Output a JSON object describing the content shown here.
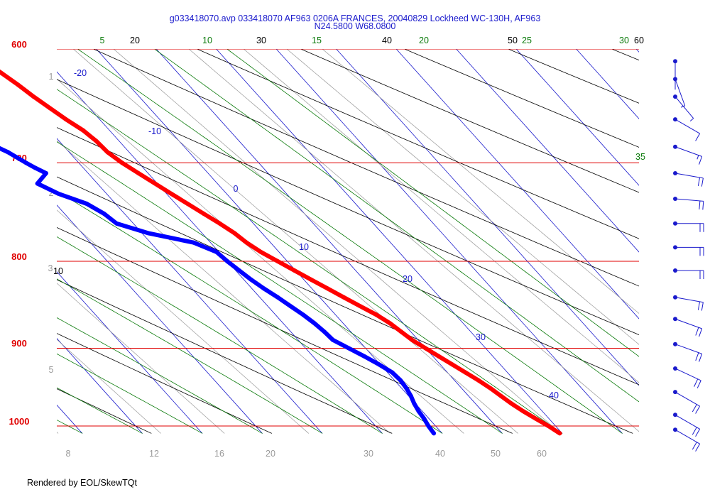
{
  "window": {
    "title_line1": "g033418070.avp 033418070 AF963 0206A FRANCES, 20040829 Lockheed WC-130H, AF963",
    "title_line2": "N24.5800 W68.0800",
    "footer": "Rendered by EOL/SkewTQt"
  },
  "colors": {
    "isobar": "#e00000",
    "isotherm": "#1a1acc",
    "dry_adiabat": "#000000",
    "moist_adiabat": "#0a7a0a",
    "mixing_ratio": "#9a9a9a",
    "temperature": "#ff0000",
    "dewpoint": "#0000ff",
    "wind": "#1a1acc"
  },
  "chart_data": {
    "type": "line",
    "title": "g033418070.avp 033418070 AF963 0206A FRANCES, 20040829 Lockheed WC-130H, AF963",
    "subtitle": "N24.5800 W68.0800",
    "pressure_range": [
      1010,
      600
    ],
    "y_scale": "log",
    "pressure_ticks": [
      "600",
      "700",
      "800",
      "900",
      "1000"
    ],
    "isotherm_labels": [
      "-20",
      "-10",
      "0",
      "10",
      "20",
      "30",
      "40"
    ],
    "dry_adiabat_labels": [
      "10",
      "20",
      "30",
      "40",
      "50",
      "60"
    ],
    "moist_adiabat_labels": [
      "5",
      "10",
      "15",
      "20",
      "25",
      "30",
      "35"
    ],
    "mixing_ratio_labels": [
      "8",
      "12",
      "16",
      "20",
      "30",
      "40",
      "50",
      "60"
    ],
    "height_labels": [
      "1",
      "2",
      "3",
      "5"
    ],
    "series": [
      {
        "name": "Temperature",
        "points": [
          {
            "p": 1010,
            "t": 24.8
          },
          {
            "p": 1000,
            "t": 24.4
          },
          {
            "p": 990,
            "t": 23.9
          },
          {
            "p": 980,
            "t": 23.4
          },
          {
            "p": 970,
            "t": 23.0
          },
          {
            "p": 960,
            "t": 22.7
          },
          {
            "p": 950,
            "t": 22.4
          },
          {
            "p": 940,
            "t": 22.0
          },
          {
            "p": 930,
            "t": 21.5
          },
          {
            "p": 920,
            "t": 21.0
          },
          {
            "p": 910,
            "t": 20.5
          },
          {
            "p": 900,
            "t": 20.0
          },
          {
            "p": 890,
            "t": 19.5
          },
          {
            "p": 880,
            "t": 19.2
          },
          {
            "p": 870,
            "t": 18.9
          },
          {
            "p": 860,
            "t": 18.4
          },
          {
            "p": 850,
            "t": 17.7
          },
          {
            "p": 840,
            "t": 17.0
          },
          {
            "p": 830,
            "t": 16.3
          },
          {
            "p": 820,
            "t": 15.6
          },
          {
            "p": 810,
            "t": 14.9
          },
          {
            "p": 800,
            "t": 14.2
          },
          {
            "p": 790,
            "t": 13.5
          },
          {
            "p": 780,
            "t": 13.0
          },
          {
            "p": 770,
            "t": 12.7
          },
          {
            "p": 760,
            "t": 12.2
          },
          {
            "p": 750,
            "t": 11.6
          },
          {
            "p": 740,
            "t": 11.0
          },
          {
            "p": 730,
            "t": 10.4
          },
          {
            "p": 720,
            "t": 9.8
          },
          {
            "p": 710,
            "t": 9.2
          },
          {
            "p": 700,
            "t": 8.6
          },
          {
            "p": 690,
            "t": 8.2
          },
          {
            "p": 680,
            "t": 8.1
          },
          {
            "p": 670,
            "t": 7.8
          },
          {
            "p": 660,
            "t": 7.2
          },
          {
            "p": 650,
            "t": 6.7
          },
          {
            "p": 640,
            "t": 6.2
          },
          {
            "p": 630,
            "t": 5.8
          },
          {
            "p": 620,
            "t": 5.3
          },
          {
            "p": 610,
            "t": 4.8
          },
          {
            "p": 600,
            "t": 4.3
          }
        ]
      },
      {
        "name": "Dewpoint",
        "points": [
          {
            "p": 1010,
            "t": 14.3
          },
          {
            "p": 1000,
            "t": 14.4
          },
          {
            "p": 990,
            "t": 14.6
          },
          {
            "p": 980,
            "t": 14.7
          },
          {
            "p": 970,
            "t": 14.9
          },
          {
            "p": 960,
            "t": 15.2
          },
          {
            "p": 950,
            "t": 15.4
          },
          {
            "p": 940,
            "t": 15.5
          },
          {
            "p": 930,
            "t": 15.4
          },
          {
            "p": 920,
            "t": 14.9
          },
          {
            "p": 910,
            "t": 14.3
          },
          {
            "p": 900,
            "t": 13.6
          },
          {
            "p": 890,
            "t": 12.9
          },
          {
            "p": 880,
            "t": 12.8
          },
          {
            "p": 870,
            "t": 12.6
          },
          {
            "p": 860,
            "t": 12.3
          },
          {
            "p": 850,
            "t": 11.9
          },
          {
            "p": 840,
            "t": 11.5
          },
          {
            "p": 830,
            "t": 11.0
          },
          {
            "p": 820,
            "t": 10.6
          },
          {
            "p": 810,
            "t": 10.3
          },
          {
            "p": 800,
            "t": 10.0
          },
          {
            "p": 790,
            "t": 9.8
          },
          {
            "p": 780,
            "t": 8.6
          },
          {
            "p": 770,
            "t": 5.5
          },
          {
            "p": 760,
            "t": 3.6
          },
          {
            "p": 750,
            "t": 3.3
          },
          {
            "p": 740,
            "t": 2.6
          },
          {
            "p": 730,
            "t": 1.0
          },
          {
            "p": 720,
            "t": 0.0
          },
          {
            "p": 710,
            "t": 1.5
          },
          {
            "p": 705,
            "t": 1.0
          },
          {
            "p": 700,
            "t": 0.6
          },
          {
            "p": 690,
            "t": -0.1
          },
          {
            "p": 680,
            "t": -1.2
          },
          {
            "p": 670,
            "t": -3.8
          },
          {
            "p": 665,
            "t": -9.2
          },
          {
            "p": 660,
            "t": -11.3
          },
          {
            "p": 650,
            "t": -8.9
          },
          {
            "p": 640,
            "t": -11.4
          },
          {
            "p": 630,
            "t": -8.6
          },
          {
            "p": 620,
            "t": -5.8
          },
          {
            "p": 610,
            "t": -7.1
          },
          {
            "p": 600,
            "t": -10.1
          }
        ]
      }
    ],
    "wind_levels_hpa": [
      610,
      625,
      640,
      660,
      685,
      710,
      735,
      760,
      785,
      810,
      840,
      865,
      895,
      925,
      955,
      985,
      1005
    ],
    "wind_speed_kt": [
      2,
      5,
      8,
      12,
      15,
      20,
      20,
      20,
      20,
      20,
      20,
      20,
      20,
      20,
      20,
      20,
      20
    ],
    "wind_dir_deg": [
      180,
      160,
      140,
      120,
      110,
      100,
      95,
      90,
      90,
      90,
      100,
      110,
      110,
      115,
      120,
      120,
      120
    ]
  }
}
